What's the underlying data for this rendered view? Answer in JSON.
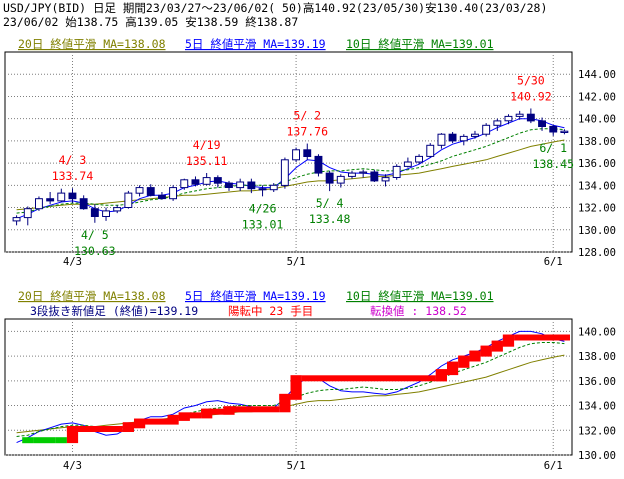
{
  "header": {
    "line1": "USD/JPY(BID) 日足 期間23/03/27～23/06/02( 50)高140.92(23/05/30)安130.40(23/03/28)",
    "line2": "23/06/02      始138.75 高139.05 安138.59 終138.87"
  },
  "colors": {
    "ma20": "#808000",
    "ma5": "#0000ff",
    "ma10": "#008000",
    "up_candle": "#ffffff",
    "down_candle": "#000080",
    "annot_high": "#ff0000",
    "annot_low": "#008000",
    "brick_up": "#ff0000",
    "brick_down": "#00cc00",
    "legend2_text": "#000080",
    "legend2_red": "#ff0000",
    "legend2_magenta": "#cc00cc"
  },
  "legend": {
    "ma20": "20日 終値平滑 MA=138.08",
    "ma5": "5日 終値平滑 MA=139.19",
    "ma10": "10日 終値平滑 MA=139.01"
  },
  "lower_legend": {
    "text1": "3段抜き新値足 (終値)=139.19",
    "text2": "陽転中  23 手目",
    "text3": "転換値 : 138.52"
  },
  "chart_data": [
    {
      "type": "candlestick",
      "name": "upper",
      "ylim": [
        128,
        146
      ],
      "yticks": [
        "128.00",
        "130.00",
        "132.00",
        "134.00",
        "136.00",
        "138.00",
        "140.00",
        "142.00",
        "144.00"
      ],
      "xtick_labels": [
        {
          "label": "4/3",
          "x": "2023-04-03"
        },
        {
          "label": "5/1",
          "x": "2023-05-01"
        },
        {
          "label": "6/1",
          "x": "2023-06-01"
        }
      ],
      "dates": [
        "03/27",
        "03/28",
        "03/29",
        "03/30",
        "03/31",
        "04/03",
        "04/04",
        "04/05",
        "04/06",
        "04/07",
        "04/10",
        "04/11",
        "04/12",
        "04/13",
        "04/14",
        "04/17",
        "04/18",
        "04/19",
        "04/20",
        "04/21",
        "04/24",
        "04/25",
        "04/26",
        "04/27",
        "04/28",
        "05/01",
        "05/02",
        "05/03",
        "05/04",
        "05/05",
        "05/08",
        "05/09",
        "05/10",
        "05/11",
        "05/12",
        "05/15",
        "05/16",
        "05/17",
        "05/18",
        "05/19",
        "05/22",
        "05/23",
        "05/24",
        "05/25",
        "05/26",
        "05/29",
        "05/30",
        "05/31",
        "06/01",
        "06/02"
      ],
      "ohlc": [
        [
          130.8,
          131.3,
          130.4,
          131.1
        ],
        [
          131.1,
          132.1,
          130.4,
          131.9
        ],
        [
          131.9,
          133.0,
          131.7,
          132.8
        ],
        [
          132.8,
          133.4,
          132.3,
          132.6
        ],
        [
          132.6,
          133.7,
          132.5,
          133.3
        ],
        [
          133.3,
          133.74,
          132.4,
          132.8
        ],
        [
          132.8,
          133.1,
          131.8,
          131.9
        ],
        [
          131.9,
          132.3,
          130.63,
          131.2
        ],
        [
          131.2,
          132.0,
          130.8,
          131.7
        ],
        [
          131.7,
          132.2,
          131.5,
          132.0
        ],
        [
          132.0,
          133.5,
          131.9,
          133.3
        ],
        [
          133.3,
          134.0,
          133.0,
          133.8
        ],
        [
          133.8,
          134.1,
          133.0,
          133.1
        ],
        [
          133.1,
          133.4,
          132.7,
          132.8
        ],
        [
          132.8,
          134.0,
          132.6,
          133.8
        ],
        [
          133.8,
          134.6,
          133.6,
          134.5
        ],
        [
          134.5,
          134.8,
          133.9,
          134.1
        ],
        [
          134.1,
          135.11,
          134.0,
          134.7
        ],
        [
          134.7,
          134.9,
          133.8,
          134.2
        ],
        [
          134.2,
          134.4,
          133.5,
          133.8
        ],
        [
          133.8,
          134.6,
          133.5,
          134.3
        ],
        [
          134.3,
          134.6,
          133.3,
          133.7
        ],
        [
          133.7,
          134.0,
          133.01,
          133.6
        ],
        [
          133.6,
          134.2,
          133.4,
          134.0
        ],
        [
          134.0,
          136.5,
          133.7,
          136.3
        ],
        [
          136.3,
          137.4,
          136.1,
          137.2
        ],
        [
          137.2,
          137.76,
          136.3,
          136.6
        ],
        [
          136.6,
          136.8,
          134.8,
          135.1
        ],
        [
          135.1,
          135.3,
          133.48,
          134.2
        ],
        [
          134.2,
          135.0,
          133.8,
          134.8
        ],
        [
          134.8,
          135.3,
          134.6,
          135.1
        ],
        [
          135.1,
          135.4,
          134.7,
          135.2
        ],
        [
          135.2,
          135.4,
          134.3,
          134.4
        ],
        [
          134.4,
          135.0,
          133.9,
          134.7
        ],
        [
          134.7,
          135.9,
          134.5,
          135.7
        ],
        [
          135.7,
          136.5,
          135.6,
          136.1
        ],
        [
          136.1,
          136.8,
          135.9,
          136.6
        ],
        [
          136.6,
          137.8,
          136.5,
          137.6
        ],
        [
          137.6,
          138.7,
          137.3,
          138.6
        ],
        [
          138.6,
          138.8,
          137.8,
          138.0
        ],
        [
          138.0,
          138.6,
          137.6,
          138.4
        ],
        [
          138.4,
          138.9,
          138.2,
          138.6
        ],
        [
          138.6,
          139.6,
          138.4,
          139.4
        ],
        [
          139.4,
          140.0,
          138.9,
          139.8
        ],
        [
          139.8,
          140.4,
          139.5,
          140.2
        ],
        [
          140.2,
          140.7,
          139.9,
          140.4
        ],
        [
          140.4,
          140.92,
          139.6,
          139.8
        ],
        [
          139.8,
          140.1,
          138.9,
          139.3
        ],
        [
          139.3,
          139.4,
          138.45,
          138.8
        ],
        [
          138.75,
          139.05,
          138.59,
          138.87
        ]
      ],
      "series": [
        {
          "name": "20日 終値平滑",
          "values": [
            131.8,
            131.9,
            132.0,
            132.1,
            132.2,
            132.3,
            132.3,
            132.3,
            132.4,
            132.5,
            132.6,
            132.7,
            132.8,
            132.9,
            133.0,
            133.1,
            133.1,
            133.2,
            133.3,
            133.4,
            133.5,
            133.5,
            133.6,
            133.7,
            133.9,
            134.1,
            134.3,
            134.4,
            134.4,
            134.5,
            134.6,
            134.7,
            134.8,
            134.8,
            134.9,
            135.0,
            135.1,
            135.3,
            135.5,
            135.7,
            135.9,
            136.1,
            136.3,
            136.6,
            136.9,
            137.2,
            137.5,
            137.7,
            137.9,
            138.08
          ]
        },
        {
          "name": "5日 終値平滑",
          "values": [
            131.0,
            131.4,
            131.9,
            132.2,
            132.5,
            132.6,
            132.4,
            131.9,
            131.6,
            131.7,
            132.2,
            132.8,
            133.1,
            133.1,
            133.3,
            133.8,
            134.0,
            134.3,
            134.4,
            134.2,
            134.1,
            133.9,
            133.8,
            133.8,
            134.6,
            135.6,
            136.3,
            136.2,
            135.6,
            135.2,
            135.1,
            135.1,
            135.0,
            134.9,
            135.1,
            135.5,
            135.9,
            136.5,
            137.2,
            137.7,
            138.0,
            138.3,
            138.7,
            139.2,
            139.6,
            140.0,
            140.0,
            139.8,
            139.4,
            139.19
          ]
        },
        {
          "name": "10日 終値平滑",
          "values": [
            131.5,
            131.6,
            131.9,
            132.1,
            132.3,
            132.4,
            132.4,
            132.3,
            132.2,
            132.2,
            132.3,
            132.5,
            132.7,
            132.8,
            133.0,
            133.3,
            133.5,
            133.7,
            133.8,
            133.9,
            134.0,
            134.0,
            134.0,
            134.0,
            134.3,
            134.7,
            135.0,
            135.2,
            135.3,
            135.3,
            135.4,
            135.5,
            135.4,
            135.3,
            135.3,
            135.4,
            135.6,
            135.9,
            136.2,
            136.6,
            136.9,
            137.2,
            137.5,
            137.9,
            138.3,
            138.7,
            139.0,
            139.1,
            139.1,
            139.01
          ]
        }
      ],
      "annotations": [
        {
          "text": "4/ 3",
          "sub": "133.74",
          "kind": "high",
          "x": "04/03",
          "y": 133.74
        },
        {
          "text": "4/ 5",
          "sub": "130.63",
          "kind": "low",
          "x": "04/05",
          "y": 130.63
        },
        {
          "text": "4/19",
          "sub": "135.11",
          "kind": "high",
          "x": "04/19",
          "y": 135.11
        },
        {
          "text": "4/26",
          "sub": "133.01",
          "kind": "low",
          "x": "04/26",
          "y": 133.01
        },
        {
          "text": "5/ 2",
          "sub": "137.76",
          "kind": "high",
          "x": "05/02",
          "y": 137.76
        },
        {
          "text": "5/ 4",
          "sub": "133.48",
          "kind": "low",
          "x": "05/04",
          "y": 133.48
        },
        {
          "text": "5/30",
          "sub": "140.92",
          "kind": "high",
          "x": "05/30",
          "y": 140.92
        },
        {
          "text": "6/ 1",
          "sub": "138.45",
          "kind": "low",
          "x": "06/01",
          "y": 138.45
        }
      ]
    },
    {
      "type": "kagi-bricks",
      "name": "lower",
      "ylim": [
        130,
        141
      ],
      "yticks": [
        "130.00",
        "132.00",
        "134.00",
        "136.00",
        "138.00",
        "140.00"
      ],
      "xtick_labels": [
        {
          "label": "4/3",
          "x": "2023-04-03"
        },
        {
          "label": "5/1",
          "x": "2023-05-01"
        },
        {
          "label": "6/1",
          "x": "2023-06-01"
        }
      ],
      "bricks": [
        {
          "i": 1,
          "from": 131.2,
          "to": 131.2,
          "dir": "down"
        },
        {
          "i": 2,
          "from": 131.2,
          "to": 131.2,
          "dir": "down"
        },
        {
          "i": 3,
          "from": 131.2,
          "to": 131.2,
          "dir": "down"
        },
        {
          "i": 4,
          "from": 131.2,
          "to": 131.2,
          "dir": "down"
        },
        {
          "i": 5,
          "from": 131.2,
          "to": 132.1,
          "dir": "up"
        },
        {
          "i": 10,
          "from": 132.1,
          "to": 132.4,
          "dir": "up"
        },
        {
          "i": 11,
          "from": 132.4,
          "to": 132.7,
          "dir": "up"
        },
        {
          "i": 14,
          "from": 132.7,
          "to": 133.0,
          "dir": "up"
        },
        {
          "i": 15,
          "from": 133.0,
          "to": 133.2,
          "dir": "up"
        },
        {
          "i": 17,
          "from": 133.2,
          "to": 133.5,
          "dir": "up"
        },
        {
          "i": 19,
          "from": 133.5,
          "to": 133.7,
          "dir": "up"
        },
        {
          "i": 24,
          "from": 133.7,
          "to": 134.7,
          "dir": "up"
        },
        {
          "i": 25,
          "from": 134.7,
          "to": 136.2,
          "dir": "up"
        },
        {
          "i": 26,
          "from": 136.2,
          "to": 136.2,
          "dir": "up"
        },
        {
          "i": 38,
          "from": 136.2,
          "to": 136.7,
          "dir": "up"
        },
        {
          "i": 39,
          "from": 136.7,
          "to": 137.3,
          "dir": "up"
        },
        {
          "i": 40,
          "from": 137.3,
          "to": 137.8,
          "dir": "up"
        },
        {
          "i": 41,
          "from": 137.8,
          "to": 138.2,
          "dir": "up"
        },
        {
          "i": 42,
          "from": 138.2,
          "to": 138.6,
          "dir": "up"
        },
        {
          "i": 43,
          "from": 138.6,
          "to": 139.0,
          "dir": "up"
        },
        {
          "i": 44,
          "from": 139.0,
          "to": 139.5,
          "dir": "up"
        },
        {
          "i": 45,
          "from": 139.5,
          "to": 139.5,
          "dir": "up"
        }
      ]
    }
  ]
}
